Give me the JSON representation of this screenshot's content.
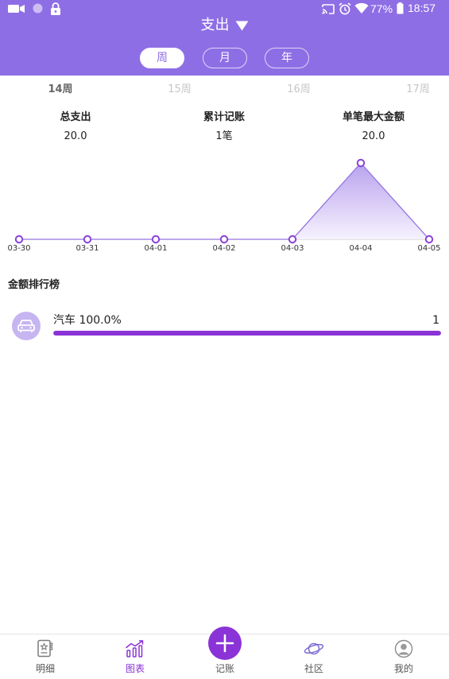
{
  "status_bar": {
    "left_icons": [
      "video-camera-icon",
      "status-circle-icon",
      "lock-icon"
    ],
    "right_icons": [
      "cast-icon",
      "alarm-icon",
      "wifi-icon",
      "battery-icon"
    ],
    "battery": "77%",
    "time": "18:57"
  },
  "header": {
    "title": "支出",
    "title_icon": "caret-down-icon",
    "tabs": [
      {
        "label": "周",
        "selected": true
      },
      {
        "label": "月",
        "selected": false
      },
      {
        "label": "年",
        "selected": false
      }
    ]
  },
  "weeks": [
    {
      "label": "14周",
      "selected": true
    },
    {
      "label": "15周",
      "selected": false
    },
    {
      "label": "16周",
      "selected": false
    },
    {
      "label": "17周",
      "selected": false
    }
  ],
  "stats": [
    {
      "label": "总支出",
      "value": "20.0"
    },
    {
      "label": "累计记账",
      "value": "1笔"
    },
    {
      "label": "单笔最大金额",
      "value": "20.0"
    }
  ],
  "chart_data": {
    "type": "line",
    "x": [
      "03-30",
      "03-31",
      "04-01",
      "04-02",
      "04-03",
      "04-04",
      "04-05"
    ],
    "series": [
      {
        "values": [
          0,
          0,
          0,
          0,
          0,
          20,
          0
        ]
      }
    ],
    "ylim": [
      0,
      20
    ],
    "area_fill": true,
    "grid": false
  },
  "ranking": {
    "title": "金额排行榜",
    "items": [
      {
        "icon": "car-icon",
        "name": "汽车",
        "percent": "100.0%",
        "count": "1",
        "share": 1.0
      }
    ]
  },
  "bottom_nav": [
    {
      "label": "明细",
      "icon": "notebook-icon",
      "active": false
    },
    {
      "label": "图表",
      "icon": "chart-icon",
      "active": true
    },
    {
      "label": "记账",
      "icon": "plus-icon",
      "active": false
    },
    {
      "label": "社区",
      "icon": "planet-icon",
      "active": false
    },
    {
      "label": "我的",
      "icon": "person-icon",
      "active": false
    }
  ],
  "colors": {
    "header": "#8E6EE5",
    "accent": "#8A33D6",
    "chart_line": "#9474E0",
    "chart_point": "#8B3FD8",
    "category_icon_bg": "#C6B5F1"
  }
}
